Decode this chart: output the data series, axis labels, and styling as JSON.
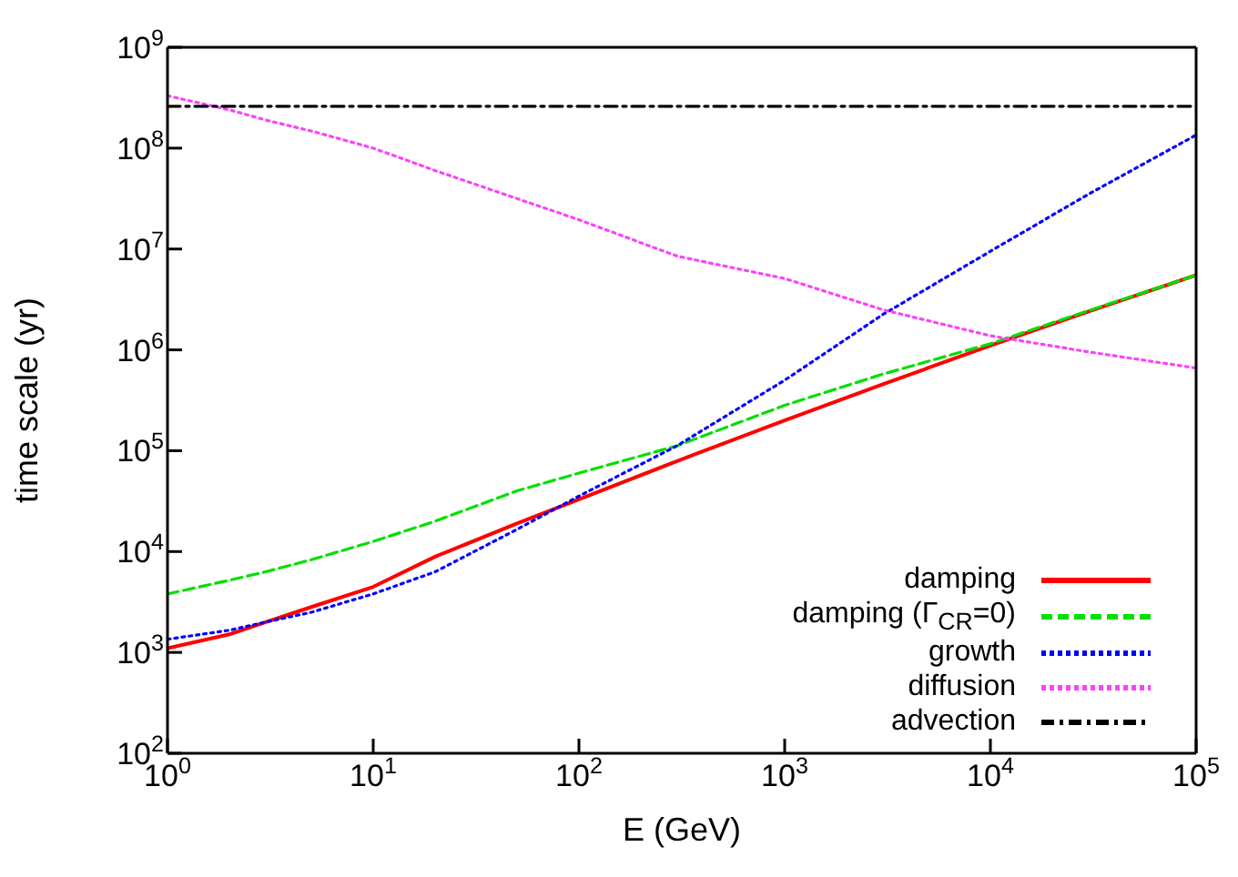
{
  "chart_data": {
    "type": "line",
    "xlabel": "E (GeV)",
    "ylabel": "time scale (yr)",
    "log": "xy",
    "grid": false,
    "legend": "bottom right",
    "marker": "none",
    "xlim": [
      1,
      100000
    ],
    "ylim": [
      100,
      1000000000
    ],
    "xticks": [
      {
        "value": 1,
        "label": "10$^{0}$"
      },
      {
        "value": 10,
        "label": "10$^{1}$"
      },
      {
        "value": 100,
        "label": "10$^{2}$"
      },
      {
        "value": 1000,
        "label": "10$^{3}$"
      },
      {
        "value": 10000,
        "label": "10$^{4}$"
      },
      {
        "value": 100000,
        "label": "10$^{5}$"
      }
    ],
    "yticks": [
      {
        "value": 100,
        "label": "10$^{2}$"
      },
      {
        "value": 1000,
        "label": "10$^{3}$"
      },
      {
        "value": 10000,
        "label": "10$^{4}$"
      },
      {
        "value": 100000,
        "label": "10$^{5}$"
      },
      {
        "value": 1000000,
        "label": "10$^{6}$"
      },
      {
        "value": 10000000,
        "label": "10$^{7}$"
      },
      {
        "value": 100000000,
        "label": "10$^{8}$"
      },
      {
        "value": 1000000000,
        "label": "10$^{9}$"
      }
    ],
    "x": [
      1,
      2,
      3,
      5,
      10,
      20,
      50,
      100,
      300,
      1000,
      3000,
      10000,
      30000,
      100000
    ],
    "series": [
      {
        "name": "damping",
        "color": "#ff0000",
        "line_style": "solid",
        "values": [
          1100,
          1510,
          2000,
          2820,
          4470,
          8900,
          19000,
          33000,
          79000,
          200000,
          457000,
          1100000,
          2400000,
          5500000
        ]
      },
      {
        "name": "damping (Γ$_{CR}$=0)",
        "color": "#00e000",
        "line_style": "dashed",
        "values": [
          3800,
          5200,
          6300,
          8300,
          12600,
          20000,
          40000,
          60000,
          112000,
          282000,
          575000,
          1150000,
          2450000,
          5500000
        ]
      },
      {
        "name": "growth",
        "color": "#0000ff",
        "line_style": "dotted",
        "values": [
          1350,
          1660,
          2000,
          2500,
          3800,
          6300,
          16600,
          35500,
          112000,
          500000,
          2240000,
          9500000,
          35000000,
          135000000
        ]
      },
      {
        "name": "diffusion",
        "color": "#ff40ff",
        "line_style": "dotted",
        "values": [
          331000000,
          240000000,
          190000000,
          148000000,
          100000000,
          60000000,
          31600000,
          19500000,
          8500000,
          5100000,
          2500000,
          1380000,
          955000,
          660000
        ]
      },
      {
        "name": "advection",
        "color": "#000000",
        "line_style": "dashdot",
        "x": [
          1,
          100000
        ],
        "values": [
          260000000,
          260000000
        ]
      }
    ]
  }
}
